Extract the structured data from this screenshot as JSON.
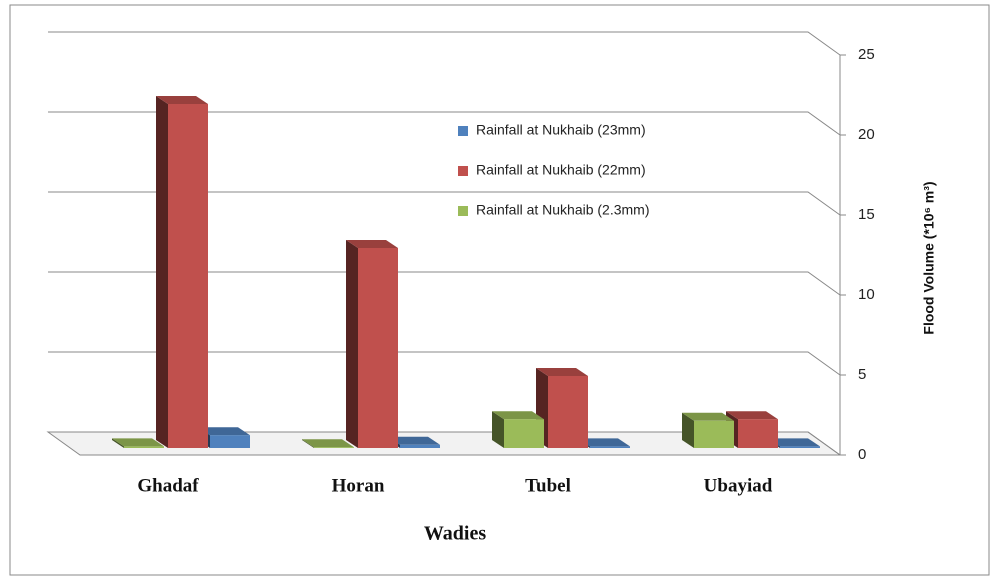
{
  "chart_data": {
    "type": "bar3d",
    "x_label": "Wadies",
    "y_label": "Flood Volume (*10⁶ m³)",
    "categories": [
      "Ghadaf",
      "Horan",
      "Tubel",
      "Ubayiad"
    ],
    "series": [
      {
        "name": "Rainfall at Nukhaib (23mm)",
        "color": "#4f81bd",
        "values": [
          0.8,
          0.2,
          0.1,
          0.1
        ]
      },
      {
        "name": "Rainfall at Nukhaib (22mm)",
        "color": "#c0504d",
        "values": [
          21.5,
          12.5,
          4.5,
          1.8
        ]
      },
      {
        "name": "Rainfall at Nukhaib (2.3mm)",
        "color": "#9bbb59",
        "values": [
          0.1,
          0.05,
          1.8,
          1.7
        ]
      }
    ],
    "ylim": [
      0,
      25
    ],
    "yticks": [
      0,
      5,
      10,
      15,
      20,
      25
    ],
    "grid": true,
    "legend": "upper right"
  }
}
